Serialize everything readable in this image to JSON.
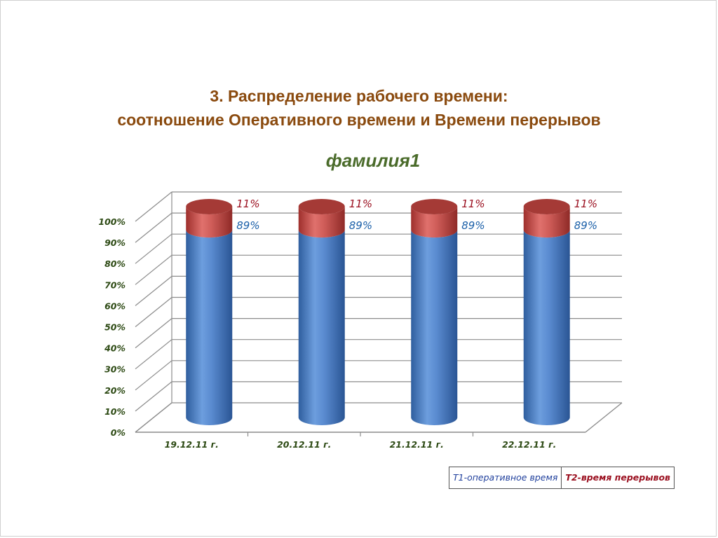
{
  "header": {
    "title_line1": "3. Распределение рабочего времени:",
    "title_line2": "соотношение Оперативного времени и Времени перерывов",
    "subtitle": "фамилия1"
  },
  "chart_data": {
    "type": "bar",
    "stacked": true,
    "style": "3d-cylinder",
    "categories": [
      "19.12.11 г.",
      "20.12.11 г.",
      "21.12.11 г.",
      "22.12.11 г."
    ],
    "series": [
      {
        "name": "Т1-оперативное время",
        "values": [
          89,
          89,
          89,
          89
        ],
        "labels": [
          "89%",
          "89%",
          "89%",
          "89%"
        ],
        "color": "#4a7ec3"
      },
      {
        "name": "Т2-время перерывов",
        "values": [
          11,
          11,
          11,
          11
        ],
        "labels": [
          "11%",
          "11%",
          "11%",
          "11%"
        ],
        "color": "#c0504d"
      }
    ],
    "yticks": [
      "0%",
      "10%",
      "20%",
      "30%",
      "40%",
      "50%",
      "60%",
      "70%",
      "80%",
      "90%",
      "100%"
    ],
    "ylim": [
      0,
      100
    ],
    "grid": true,
    "legend_position": "bottom-right"
  },
  "colors": {
    "axis_text": "#2d4a14",
    "label_t1": "#1a5fa8",
    "label_t2": "#9b1020",
    "grid": "#8c8c8c"
  }
}
